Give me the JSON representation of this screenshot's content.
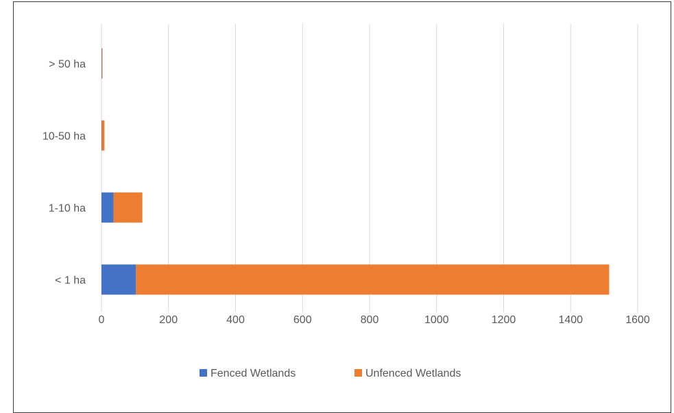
{
  "chart_data": {
    "type": "bar",
    "orientation": "horizontal",
    "stacked": true,
    "categories": [
      "< 1 ha",
      "1-10 ha",
      "10-50 ha",
      "> 50 ha"
    ],
    "series": [
      {
        "name": "Fenced Wetlands",
        "color": "#4472C4",
        "values": [
          103,
          36,
          1,
          1
        ]
      },
      {
        "name": "Unfenced Wetlands",
        "color": "#ED7D31",
        "values": [
          1412,
          86,
          8,
          2
        ]
      }
    ],
    "x_ticks": [
      "0",
      "200",
      "400",
      "600",
      "800",
      "1000",
      "1200",
      "1400",
      "1600"
    ],
    "xlim": [
      0,
      1600
    ],
    "grid": "vertical",
    "legend": "bottom",
    "title": "",
    "xlabel": "",
    "ylabel": ""
  }
}
